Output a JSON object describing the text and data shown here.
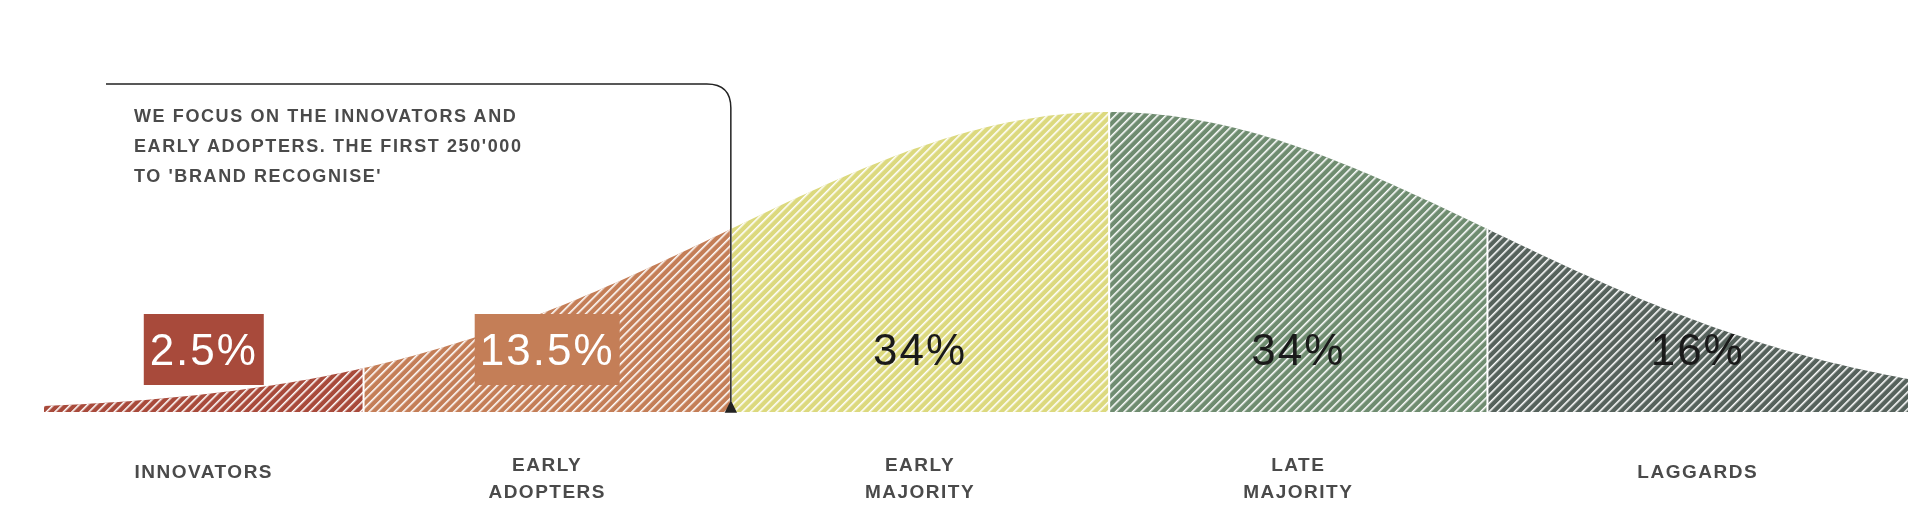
{
  "chart_data": {
    "type": "other",
    "categories": [
      "INNOVATORS",
      "EARLY ADOPTERS",
      "EARLY MAJORITY",
      "LATE MAJORITY",
      "LAGGARDS"
    ],
    "values": [
      2.5,
      13.5,
      34,
      34,
      16
    ],
    "value_labels": [
      "2.5%",
      "13.5%",
      "34%",
      "34%",
      "16%"
    ],
    "colors": [
      "#a84a3b",
      "#c47e57",
      "#dcd97e",
      "#6f8c70",
      "#56625c"
    ],
    "annotations": [
      "WE FOCUS ON THE INNOVATORS AND EARLY ADOPTERS. THE FIRST 250'000 TO 'BRAND RECOGNISE'"
    ]
  }
}
